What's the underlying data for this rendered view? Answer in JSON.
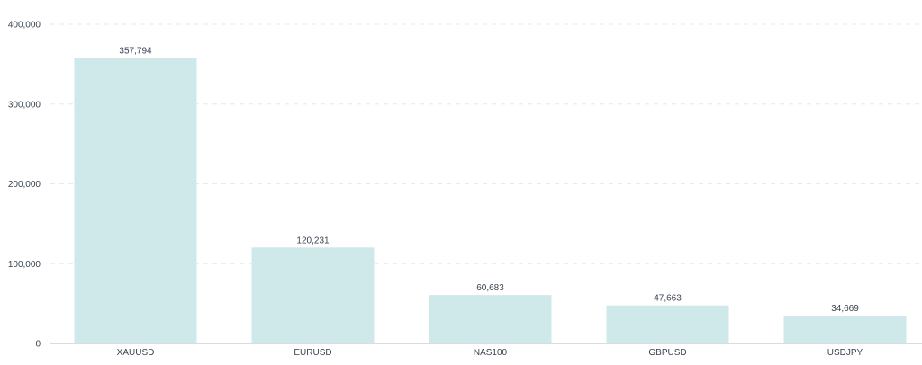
{
  "chart_data": {
    "type": "bar",
    "categories": [
      "XAUUSD",
      "EURUSD",
      "NAS100",
      "GBPUSD",
      "USDJPY"
    ],
    "values": [
      357794,
      120231,
      60683,
      47663,
      34669
    ],
    "data_labels": [
      "357,794",
      "120,231",
      "60,683",
      "47,663",
      "34,669"
    ],
    "y_ticks": [
      0,
      100000,
      200000,
      300000,
      400000
    ],
    "y_tick_labels": [
      "0",
      "100,000",
      "200,000",
      "300,000",
      "400,000"
    ],
    "ylim": [
      0,
      400000
    ],
    "grid": true,
    "legend": "none",
    "colors": {
      "bar": "#cfe8e9",
      "grid": "#e6e9ee",
      "text": "#3a4252"
    }
  }
}
